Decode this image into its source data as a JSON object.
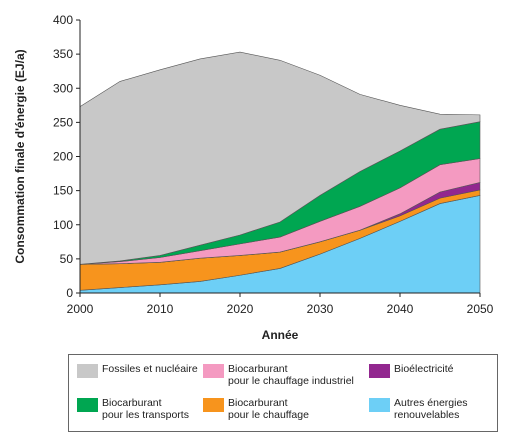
{
  "chart_data": {
    "type": "area",
    "stacked": true,
    "xlabel": "Année",
    "ylabel": "Consommation finale d'énergie  (EJ/a)",
    "x": [
      2000,
      2005,
      2010,
      2015,
      2020,
      2025,
      2030,
      2035,
      2040,
      2045,
      2050
    ],
    "xticks": [
      2000,
      2010,
      2020,
      2030,
      2040,
      2050
    ],
    "yticks": [
      0,
      50,
      100,
      150,
      200,
      250,
      300,
      350,
      400
    ],
    "xlim": [
      2000,
      2050
    ],
    "ylim": [
      0,
      400
    ],
    "series": [
      {
        "name": "Autres énergies\nrenouvelables",
        "color": "#6dcff6",
        "values": [
          4,
          8,
          12,
          17,
          26,
          36,
          57,
          80,
          105,
          131,
          143
        ]
      },
      {
        "name": "Biocarburant\npour le chauffage",
        "color": "#f7941d",
        "values": [
          38,
          35,
          33,
          34,
          29,
          24,
          18,
          12,
          8,
          8,
          8
        ]
      },
      {
        "name": "Bioélectricité",
        "color": "#92278f",
        "values": [
          0,
          0,
          0,
          0,
          0,
          0,
          0,
          0,
          3,
          9,
          11
        ]
      },
      {
        "name": "Biocarburant\npour le chauffage industriel",
        "color": "#f49ac1",
        "values": [
          0,
          3,
          7,
          11,
          17,
          22,
          30,
          35,
          38,
          40,
          35
        ]
      },
      {
        "name": "Biocarburant\npour les transports",
        "color": "#00a651",
        "values": [
          0,
          1,
          3,
          8,
          13,
          22,
          38,
          51,
          54,
          52,
          54
        ]
      },
      {
        "name": "Fossiles et nucléaire",
        "color": "#c8c8c8",
        "values": [
          231,
          263,
          272,
          273,
          268,
          237,
          176,
          113,
          67,
          22,
          10
        ]
      }
    ]
  },
  "legend_items": [
    {
      "label": "Fossiles et nucléaire",
      "color": "#c8c8c8"
    },
    {
      "label": "Biocarburant\npour le chauffage industriel",
      "color": "#f49ac1"
    },
    {
      "label": "Bioélectricité",
      "color": "#92278f"
    },
    {
      "label": "Biocarburant\npour les transports",
      "color": "#00a651"
    },
    {
      "label": "Biocarburant\npour le chauffage",
      "color": "#f7941d"
    },
    {
      "label": "Autres énergies\nrenouvelables",
      "color": "#6dcff6"
    }
  ]
}
